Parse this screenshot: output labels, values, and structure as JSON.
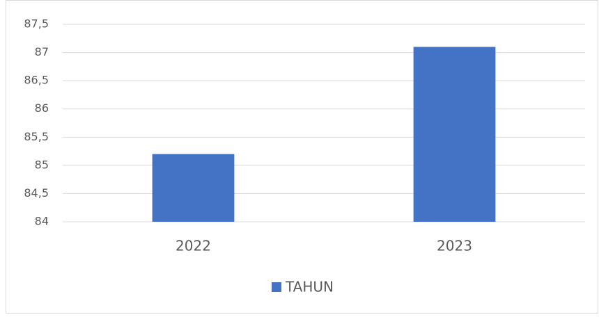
{
  "chart_data": {
    "type": "bar",
    "categories": [
      "2022",
      "2023"
    ],
    "series": [
      {
        "name": "TAHUN",
        "color": "#4472c4",
        "values": [
          85.2,
          87.1
        ]
      }
    ],
    "ylim": [
      84,
      87.5
    ],
    "yticks": [
      84,
      {
        "value": 84.5,
        "label": "84,5"
      },
      85,
      {
        "value": 85.5,
        "label": "85,5"
      },
      86,
      {
        "value": 86.5,
        "label": "86,5"
      },
      87,
      {
        "value": 87.5,
        "label": "87,5"
      }
    ],
    "grid": true,
    "legend": "bottom"
  }
}
